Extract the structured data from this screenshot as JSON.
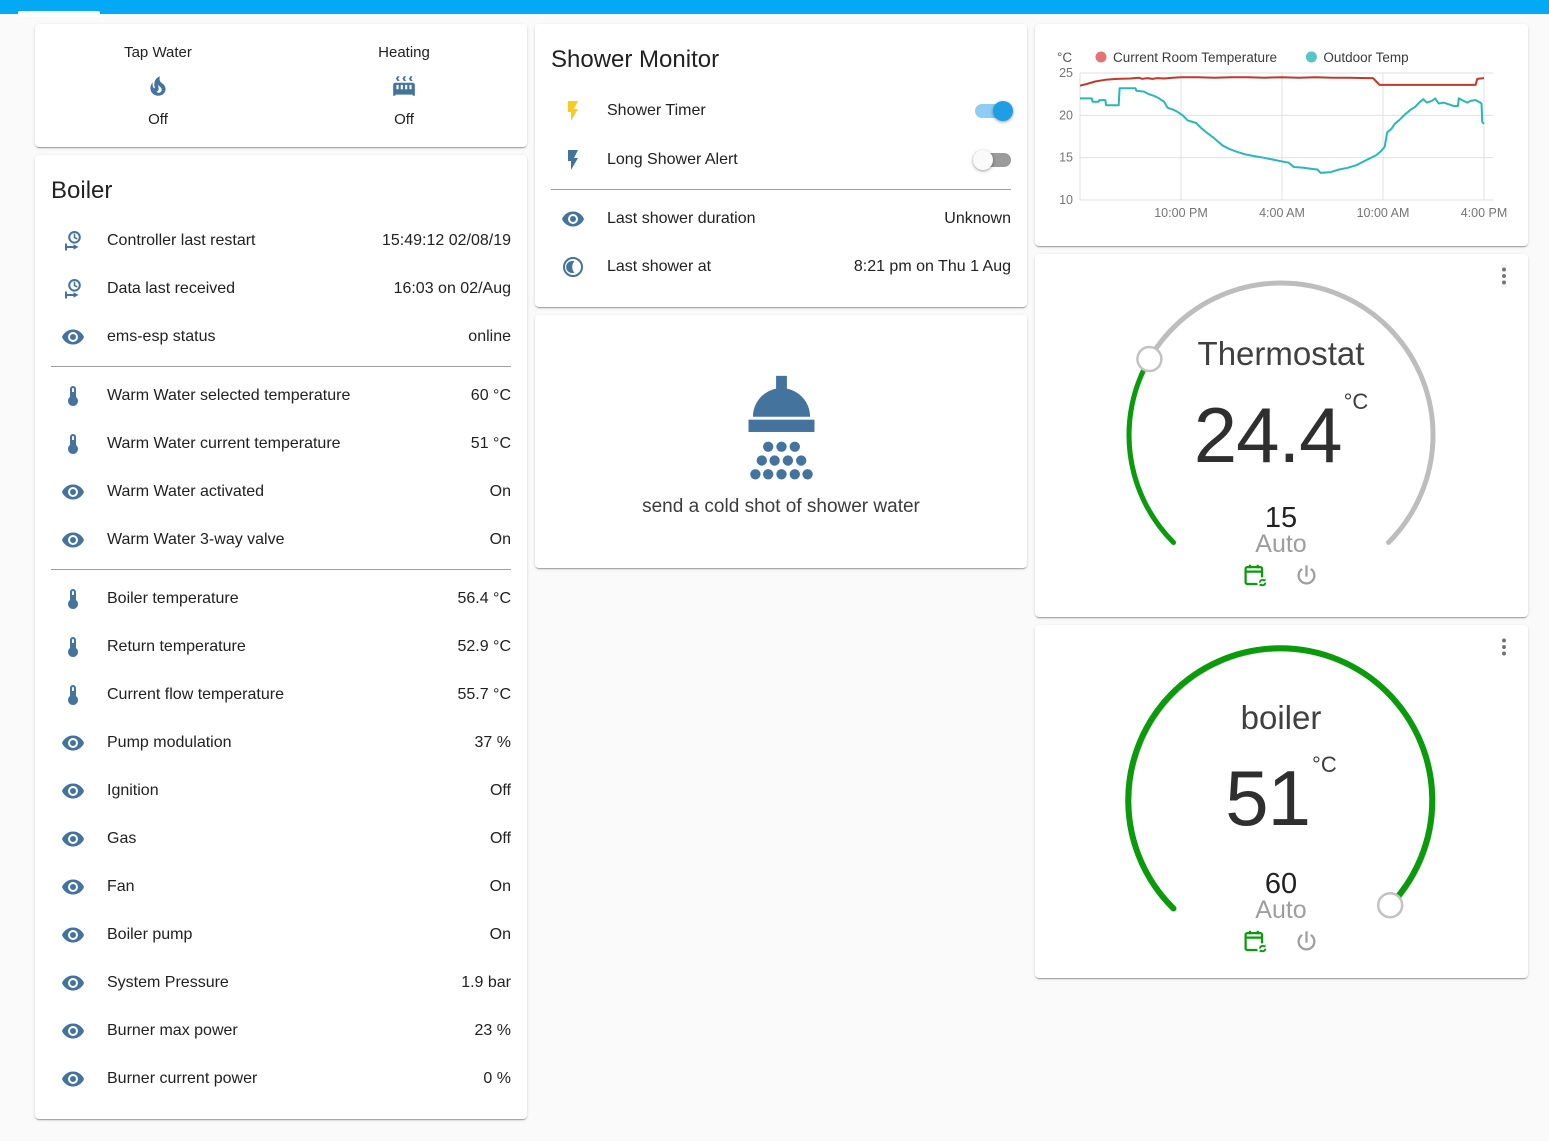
{
  "app": {
    "accent_color": "#03a9f4",
    "icon_color": "#44739e",
    "dial_green": "#0a9b0a"
  },
  "glance_card": {
    "items": [
      {
        "label": "Tap Water",
        "icon": "fire",
        "state": "Off"
      },
      {
        "label": "Heating",
        "icon": "radiator",
        "state": "Off"
      }
    ]
  },
  "boiler_card": {
    "title": "Boiler",
    "rows": [
      {
        "icon": "clock-start",
        "label": "Controller last restart",
        "value": "15:49:12 02/08/19"
      },
      {
        "icon": "clock-start",
        "label": "Data last received",
        "value": "16:03 on 02/Aug"
      },
      {
        "icon": "eye",
        "label": "ems-esp status",
        "value": "online",
        "divider_after": true
      },
      {
        "icon": "thermometer",
        "label": "Warm Water selected temperature",
        "value": "60 °C"
      },
      {
        "icon": "thermometer",
        "label": "Warm Water current temperature",
        "value": "51 °C"
      },
      {
        "icon": "eye",
        "label": "Warm Water activated",
        "value": "On"
      },
      {
        "icon": "eye",
        "label": "Warm Water 3-way valve",
        "value": "On",
        "divider_after": true
      },
      {
        "icon": "thermometer",
        "label": "Boiler temperature",
        "value": "56.4 °C"
      },
      {
        "icon": "thermometer",
        "label": "Return temperature",
        "value": "52.9 °C"
      },
      {
        "icon": "thermometer",
        "label": "Current flow temperature",
        "value": "55.7 °C"
      },
      {
        "icon": "eye",
        "label": "Pump modulation",
        "value": "37 %"
      },
      {
        "icon": "eye",
        "label": "Ignition",
        "value": "Off"
      },
      {
        "icon": "eye",
        "label": "Gas",
        "value": "Off"
      },
      {
        "icon": "eye",
        "label": "Fan",
        "value": "On"
      },
      {
        "icon": "eye",
        "label": "Boiler pump",
        "value": "On"
      },
      {
        "icon": "eye",
        "label": "System Pressure",
        "value": "1.9 bar"
      },
      {
        "icon": "eye",
        "label": "Burner max power",
        "value": "23 %"
      },
      {
        "icon": "eye",
        "label": "Burner current power",
        "value": "0 %"
      }
    ]
  },
  "shower_card": {
    "title": "Shower Monitor",
    "toggle_rows": [
      {
        "icon": "flash",
        "icon_color": "#f9cb1f",
        "label": "Shower Timer",
        "state": "on"
      },
      {
        "icon": "flash",
        "icon_color": "#44739e",
        "label": "Long Shower Alert",
        "state": "off"
      }
    ],
    "info_rows": [
      {
        "icon": "eye",
        "label": "Last shower duration",
        "value": "Unknown"
      },
      {
        "icon": "moon",
        "label": "Last shower at",
        "value": "8:21 pm on Thu 1 Aug"
      }
    ]
  },
  "shower_button_card": {
    "icon": "shower",
    "label": "send a cold shot of shower water"
  },
  "chart_data": {
    "type": "line",
    "title": "",
    "ylabel": "°C",
    "ylim": [
      10,
      25
    ],
    "yticks": [
      25,
      20,
      15,
      10
    ],
    "grid": true,
    "legend_position": "top",
    "x_unit": "hours from 4:00 PM (24h window)",
    "x_range": [
      0,
      24
    ],
    "xticks": [
      {
        "t": 6,
        "label": "10:00 PM"
      },
      {
        "t": 12,
        "label": "4:00 AM"
      },
      {
        "t": 18,
        "label": "10:00 AM"
      },
      {
        "t": 24,
        "label": "4:00 PM"
      }
    ],
    "series": [
      {
        "name": "Current Room Temperature",
        "color": "#c0392b",
        "dot_color": "#e57373",
        "points": [
          [
            0,
            23.5
          ],
          [
            0.4,
            23.7
          ],
          [
            0.9,
            24.0
          ],
          [
            1.5,
            24.2
          ],
          [
            2.2,
            24.3
          ],
          [
            3.0,
            24.35
          ],
          [
            3.5,
            24.45
          ],
          [
            3.7,
            24.3
          ],
          [
            4.0,
            24.4
          ],
          [
            4.3,
            24.3
          ],
          [
            4.6,
            24.4
          ],
          [
            5.0,
            24.35
          ],
          [
            5.5,
            24.45
          ],
          [
            6.0,
            24.5
          ],
          [
            7.0,
            24.5
          ],
          [
            8.0,
            24.45
          ],
          [
            9.0,
            24.5
          ],
          [
            10.0,
            24.5
          ],
          [
            11.0,
            24.45
          ],
          [
            12.0,
            24.5
          ],
          [
            13.0,
            24.45
          ],
          [
            14.0,
            24.5
          ],
          [
            15.0,
            24.45
          ],
          [
            16.0,
            24.45
          ],
          [
            17.0,
            24.4
          ],
          [
            17.4,
            24.4
          ],
          [
            17.6,
            24.0
          ],
          [
            17.8,
            23.6
          ],
          [
            23.5,
            23.6
          ],
          [
            23.6,
            24.3
          ],
          [
            24,
            24.4
          ]
        ]
      },
      {
        "name": "Outdoor Temp",
        "color": "#2ab7b7",
        "dot_color": "#55c6c6",
        "points": [
          [
            0,
            22.0
          ],
          [
            0.7,
            22.0
          ],
          [
            0.75,
            21.6
          ],
          [
            1.1,
            21.6
          ],
          [
            1.15,
            21.8
          ],
          [
            1.5,
            21.8
          ],
          [
            1.55,
            21.2
          ],
          [
            2.3,
            21.2
          ],
          [
            2.35,
            23.2
          ],
          [
            3.3,
            23.2
          ],
          [
            3.35,
            22.9
          ],
          [
            3.8,
            22.8
          ],
          [
            4.1,
            22.5
          ],
          [
            4.4,
            22.3
          ],
          [
            4.7,
            22.0
          ],
          [
            5.0,
            21.6
          ],
          [
            5.2,
            20.9
          ],
          [
            5.5,
            20.7
          ],
          [
            5.8,
            20.4
          ],
          [
            6.1,
            20.0
          ],
          [
            6.4,
            19.4
          ],
          [
            6.9,
            19.1
          ],
          [
            7.2,
            18.5
          ],
          [
            7.5,
            18.0
          ],
          [
            7.9,
            17.4
          ],
          [
            8.2,
            16.9
          ],
          [
            8.5,
            16.4
          ],
          [
            8.9,
            16.0
          ],
          [
            9.3,
            15.7
          ],
          [
            9.8,
            15.4
          ],
          [
            10.3,
            15.2
          ],
          [
            10.9,
            15.0
          ],
          [
            11.4,
            14.8
          ],
          [
            11.9,
            14.6
          ],
          [
            12.4,
            14.4
          ],
          [
            12.7,
            13.9
          ],
          [
            13.3,
            13.8
          ],
          [
            13.7,
            13.7
          ],
          [
            14.1,
            13.6
          ],
          [
            14.3,
            13.2
          ],
          [
            14.9,
            13.3
          ],
          [
            15.4,
            13.6
          ],
          [
            15.9,
            13.8
          ],
          [
            16.4,
            14.1
          ],
          [
            16.8,
            14.5
          ],
          [
            17.2,
            14.9
          ],
          [
            17.6,
            15.3
          ],
          [
            17.9,
            15.8
          ],
          [
            18.1,
            16.3
          ],
          [
            18.25,
            18.0
          ],
          [
            18.5,
            18.4
          ],
          [
            18.7,
            19.0
          ],
          [
            19.0,
            19.5
          ],
          [
            19.3,
            20.1
          ],
          [
            19.6,
            20.6
          ],
          [
            19.9,
            21.0
          ],
          [
            20.2,
            21.6
          ],
          [
            20.4,
            21.9
          ],
          [
            20.6,
            21.5
          ],
          [
            20.9,
            21.7
          ],
          [
            21.1,
            22.0
          ],
          [
            21.3,
            21.4
          ],
          [
            21.6,
            21.5
          ],
          [
            21.9,
            21.3
          ],
          [
            22.2,
            21.1
          ],
          [
            22.45,
            21.1
          ],
          [
            22.5,
            22.0
          ],
          [
            22.7,
            21.8
          ],
          [
            23.0,
            21.5
          ],
          [
            23.2,
            21.7
          ],
          [
            23.5,
            21.8
          ],
          [
            23.7,
            21.6
          ],
          [
            23.85,
            21.4
          ],
          [
            23.9,
            19.2
          ],
          [
            24,
            19.0
          ]
        ]
      }
    ]
  },
  "thermostat_card": {
    "title": "Thermostat",
    "value": "24.4",
    "unit": "°C",
    "target": "15",
    "mode": "Auto"
  },
  "boiler_dial_card": {
    "title": "boiler",
    "value": "51",
    "unit": "°C",
    "target": "60",
    "mode": "Auto"
  }
}
